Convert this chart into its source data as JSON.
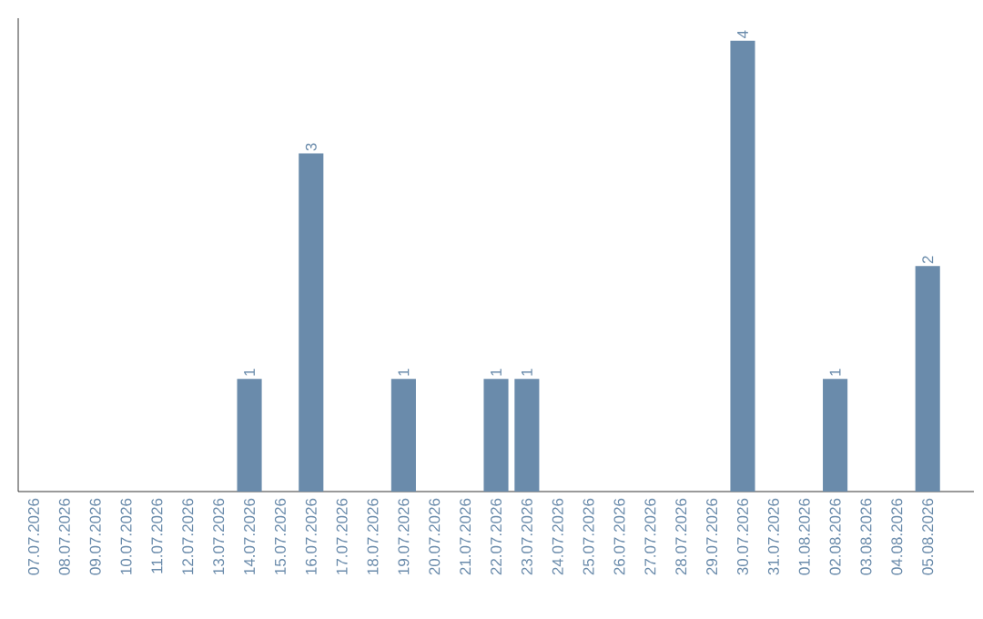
{
  "chart_data": {
    "type": "bar",
    "categories": [
      "07.07.2026",
      "08.07.2026",
      "09.07.2026",
      "10.07.2026",
      "11.07.2026",
      "12.07.2026",
      "13.07.2026",
      "14.07.2026",
      "15.07.2026",
      "16.07.2026",
      "17.07.2026",
      "18.07.2026",
      "19.07.2026",
      "20.07.2026",
      "21.07.2026",
      "22.07.2026",
      "23.07.2026",
      "24.07.2026",
      "25.07.2026",
      "26.07.2026",
      "27.07.2026",
      "28.07.2026",
      "29.07.2026",
      "30.07.2026",
      "31.07.2026",
      "01.08.2026",
      "02.08.2026",
      "03.08.2026",
      "04.08.2026",
      "05.08.2026"
    ],
    "values": [
      0,
      0,
      0,
      0,
      0,
      0,
      0,
      1,
      0,
      3,
      0,
      0,
      1,
      0,
      0,
      1,
      1,
      0,
      0,
      0,
      0,
      0,
      0,
      4,
      0,
      0,
      1,
      0,
      0,
      2
    ],
    "value_labels": [
      null,
      null,
      null,
      null,
      null,
      null,
      null,
      "1",
      null,
      "3",
      null,
      null,
      "1",
      null,
      null,
      "1",
      "1",
      null,
      null,
      null,
      null,
      null,
      null,
      "4",
      null,
      null,
      "1",
      null,
      null,
      "2"
    ],
    "color": "#6a8bab"
  }
}
